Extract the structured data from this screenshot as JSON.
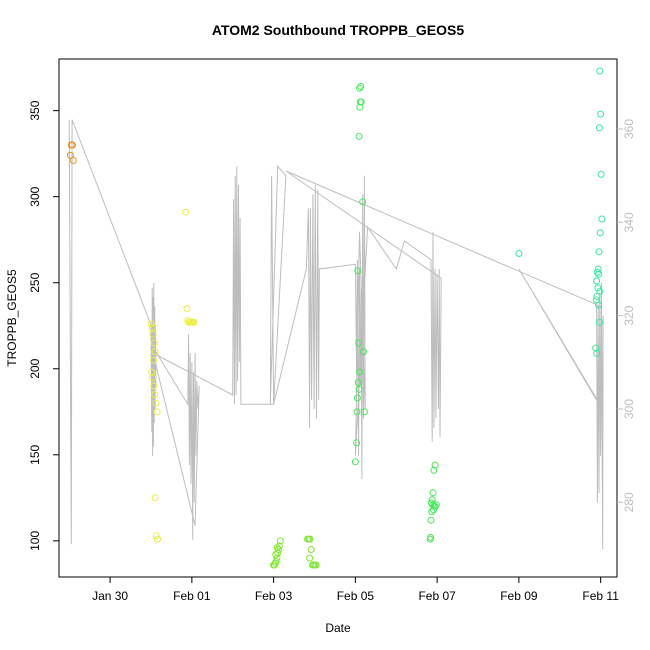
{
  "chart_data": {
    "type": "scatter",
    "title": "ATOM2 Southbound TROPPB_GEOS5",
    "xlabel": "Date",
    "ylabel": "TROPPB_GEOS5",
    "x_ticks": [
      {
        "label": "Jan 30",
        "day": 1
      },
      {
        "label": "Feb 01",
        "day": 3
      },
      {
        "label": "Feb 03",
        "day": 5
      },
      {
        "label": "Feb 05",
        "day": 7
      },
      {
        "label": "Feb 07",
        "day": 9
      },
      {
        "label": "Feb 09",
        "day": 11
      },
      {
        "label": "Feb 11",
        "day": 13
      }
    ],
    "xlim": [
      -0.25,
      13.4
    ],
    "ylim": [
      79,
      380
    ],
    "y_ticks": [
      100,
      150,
      200,
      250,
      300,
      350
    ],
    "y2lim": [
      264,
      375
    ],
    "y2_ticks": [
      280,
      300,
      320,
      340,
      360
    ],
    "grid": false,
    "series": [
      {
        "color": "#e8922a",
        "points": [
          [
            0.05,
            330
          ],
          [
            0.08,
            330
          ],
          [
            0.03,
            324
          ],
          [
            0.1,
            321
          ]
        ]
      },
      {
        "color": "#eaf03a",
        "points": [
          [
            2.0,
            226
          ],
          [
            2.03,
            224
          ],
          [
            2.05,
            220
          ],
          [
            2.08,
            215
          ],
          [
            2.1,
            210
          ],
          [
            2.06,
            205
          ],
          [
            2.02,
            198
          ],
          [
            2.04,
            195
          ],
          [
            2.07,
            190
          ],
          [
            2.09,
            185
          ],
          [
            2.12,
            180
          ],
          [
            2.15,
            175
          ],
          [
            2.1,
            125
          ],
          [
            2.13,
            103
          ],
          [
            2.16,
            101
          ],
          [
            2.85,
            291
          ],
          [
            2.88,
            235
          ],
          [
            2.9,
            228
          ],
          [
            2.93,
            227
          ],
          [
            2.96,
            227
          ],
          [
            2.99,
            227
          ],
          [
            3.02,
            227
          ],
          [
            3.05,
            227
          ]
        ]
      },
      {
        "color": "#7fe830",
        "points": [
          [
            5.0,
            86
          ],
          [
            5.02,
            86
          ],
          [
            5.04,
            87
          ],
          [
            5.06,
            88
          ],
          [
            5.08,
            90
          ],
          [
            5.1,
            93
          ],
          [
            5.12,
            95
          ],
          [
            5.14,
            97
          ],
          [
            5.16,
            100
          ],
          [
            5.05,
            92
          ],
          [
            5.09,
            96
          ],
          [
            5.83,
            101
          ],
          [
            5.86,
            101
          ],
          [
            5.89,
            101
          ],
          [
            5.92,
            95
          ],
          [
            5.88,
            90
          ],
          [
            5.95,
            86
          ],
          [
            5.98,
            86
          ],
          [
            6.01,
            86
          ],
          [
            6.04,
            86
          ]
        ]
      },
      {
        "color": "#46e85a",
        "points": [
          [
            7.1,
            363
          ],
          [
            7.13,
            364
          ],
          [
            7.12,
            355
          ],
          [
            7.14,
            355
          ],
          [
            7.11,
            352
          ],
          [
            7.09,
            335
          ],
          [
            7.18,
            297
          ],
          [
            7.06,
            257
          ],
          [
            7.08,
            215
          ],
          [
            7.2,
            210
          ],
          [
            7.1,
            198
          ],
          [
            7.07,
            192
          ],
          [
            7.09,
            188
          ],
          [
            7.05,
            183
          ],
          [
            7.04,
            175
          ],
          [
            7.22,
            175
          ],
          [
            7.03,
            157
          ],
          [
            7.0,
            146
          ],
          [
            8.95,
            144
          ],
          [
            8.92,
            141
          ],
          [
            8.9,
            128
          ],
          [
            8.88,
            124
          ],
          [
            8.86,
            122
          ],
          [
            8.89,
            121
          ],
          [
            8.92,
            120
          ],
          [
            8.95,
            120
          ],
          [
            8.98,
            121
          ],
          [
            8.91,
            118
          ],
          [
            8.87,
            117
          ],
          [
            8.85,
            112
          ],
          [
            8.84,
            102
          ],
          [
            8.83,
            101
          ]
        ]
      },
      {
        "color": "#38e8a0",
        "points": [
          [
            11.0,
            267
          ],
          [
            12.98,
            373
          ],
          [
            13.0,
            348
          ],
          [
            12.97,
            340
          ],
          [
            13.01,
            313
          ],
          [
            13.03,
            287
          ],
          [
            12.99,
            279
          ],
          [
            12.96,
            268
          ],
          [
            12.94,
            258
          ],
          [
            12.92,
            256
          ],
          [
            12.95,
            255
          ],
          [
            12.9,
            251
          ],
          [
            12.93,
            247
          ],
          [
            12.98,
            245
          ],
          [
            12.91,
            242
          ],
          [
            12.89,
            240
          ],
          [
            12.95,
            237
          ],
          [
            12.97,
            227
          ],
          [
            12.88,
            212
          ],
          [
            12.9,
            209
          ]
        ]
      }
    ],
    "line_y2": [
      [
        0.0,
        362
      ],
      [
        0.05,
        271
      ],
      [
        0.07,
        362
      ],
      [
        2.0,
        318
      ],
      [
        2.02,
        295
      ],
      [
        2.03,
        326
      ],
      [
        2.04,
        290
      ],
      [
        2.05,
        324
      ],
      [
        2.06,
        292
      ],
      [
        2.07,
        327
      ],
      [
        2.08,
        297
      ],
      [
        2.09,
        322
      ],
      [
        2.1,
        300
      ],
      [
        2.11,
        318
      ],
      [
        2.12,
        305
      ],
      [
        2.0,
        314
      ],
      [
        2.9,
        301
      ],
      [
        2.92,
        316
      ],
      [
        2.94,
        288
      ],
      [
        2.96,
        312
      ],
      [
        2.98,
        284
      ],
      [
        3.0,
        310
      ],
      [
        3.02,
        272
      ],
      [
        3.04,
        308
      ],
      [
        3.06,
        280
      ],
      [
        3.08,
        312
      ],
      [
        3.1,
        290
      ],
      [
        3.12,
        306
      ],
      [
        3.15,
        300
      ],
      [
        3.18,
        305
      ],
      [
        3.08,
        275
      ],
      [
        2.05,
        312
      ],
      [
        4.0,
        303
      ],
      [
        4.02,
        345
      ],
      [
        4.04,
        301
      ],
      [
        4.06,
        350
      ],
      [
        4.08,
        303
      ],
      [
        4.1,
        352
      ],
      [
        4.12,
        306
      ],
      [
        4.14,
        348
      ],
      [
        4.16,
        310
      ],
      [
        4.18,
        341
      ],
      [
        4.2,
        301
      ],
      [
        5.0,
        301
      ],
      [
        4.95,
        350
      ],
      [
        4.92,
        301
      ],
      [
        5.1,
        352
      ],
      [
        5.3,
        350
      ],
      [
        5.0,
        301
      ],
      [
        5.8,
        330
      ],
      [
        5.85,
        343
      ],
      [
        5.88,
        296
      ],
      [
        5.9,
        343
      ],
      [
        5.93,
        302
      ],
      [
        5.96,
        346
      ],
      [
        5.99,
        300
      ],
      [
        6.02,
        348
      ],
      [
        6.05,
        298
      ],
      [
        6.08,
        347
      ],
      [
        6.1,
        302
      ],
      [
        6.12,
        330
      ],
      [
        7.0,
        331
      ],
      [
        7.03,
        308
      ],
      [
        7.05,
        332
      ],
      [
        7.08,
        290
      ],
      [
        7.1,
        330
      ],
      [
        7.12,
        305
      ],
      [
        7.14,
        326
      ],
      [
        7.16,
        285
      ],
      [
        7.18,
        346
      ],
      [
        7.2,
        298
      ],
      [
        7.22,
        350
      ],
      [
        7.24,
        300
      ],
      [
        7.1,
        338
      ],
      [
        7.0,
        290
      ],
      [
        7.3,
        339
      ],
      [
        8.0,
        330
      ],
      [
        8.2,
        336
      ],
      [
        8.85,
        332
      ],
      [
        8.88,
        293
      ],
      [
        8.9,
        338
      ],
      [
        8.92,
        296
      ],
      [
        8.95,
        330
      ],
      [
        8.97,
        298
      ],
      [
        9.0,
        329
      ],
      [
        9.03,
        300
      ],
      [
        9.05,
        330
      ],
      [
        9.07,
        294
      ],
      [
        9.1,
        328
      ],
      [
        5.3,
        351
      ],
      [
        13.0,
        322
      ],
      [
        12.9,
        322
      ],
      [
        12.92,
        280
      ],
      [
        12.94,
        322
      ],
      [
        12.96,
        282
      ],
      [
        12.98,
        325
      ],
      [
        13.0,
        290
      ],
      [
        13.02,
        327
      ],
      [
        13.04,
        284
      ],
      [
        13.06,
        320
      ],
      [
        13.05,
        270
      ],
      [
        13.03,
        300
      ],
      [
        11.0,
        330
      ],
      [
        13.05,
        300
      ]
    ]
  }
}
